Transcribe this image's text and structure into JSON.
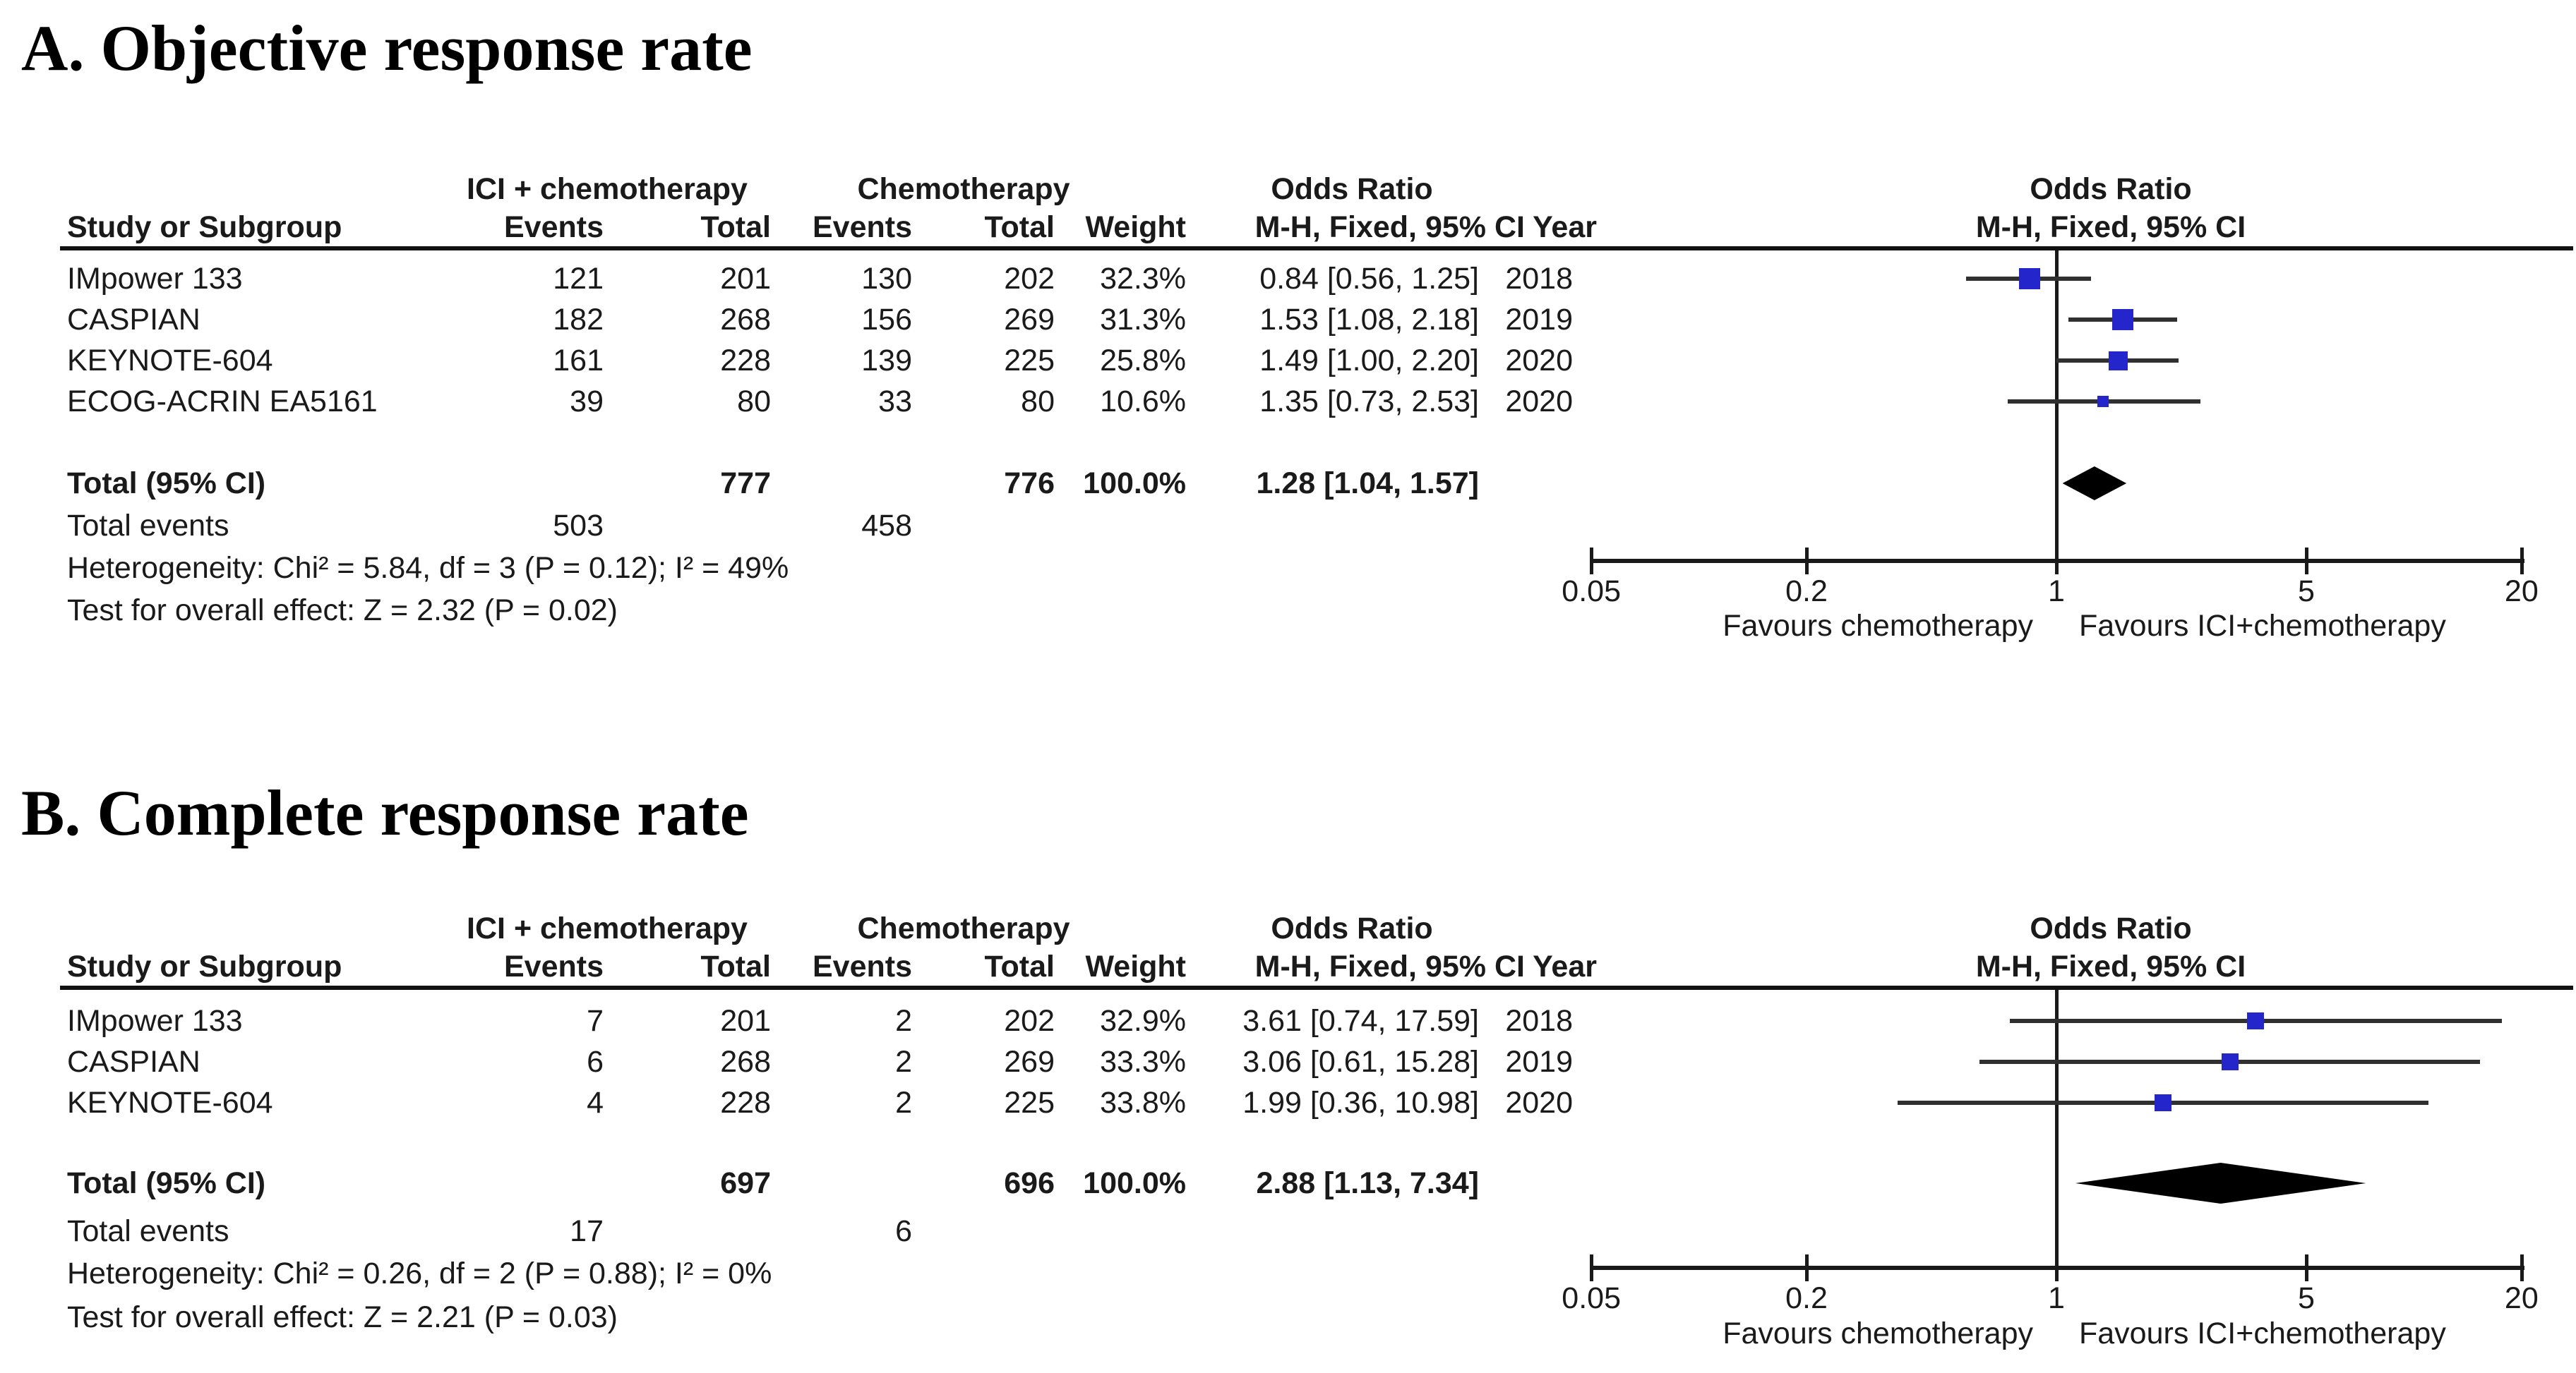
{
  "figure": {
    "text_color": "#1a1a1a",
    "square_color": "#2525cc",
    "ci_color": "#303030"
  },
  "panels": [
    {
      "title": "A. Objective response rate",
      "table": {
        "group1": "ICI + chemotherapy",
        "group2": "Chemotherapy",
        "or_col": "Odds Ratio",
        "study_hdr": "Study or Subgroup",
        "events_hdr": "Events",
        "total_hdr": "Total",
        "weight_hdr": "Weight",
        "mh_year_hdr": "M-H, Fixed, 95% CI Year",
        "rows": [
          {
            "study": "IMpower 133",
            "events1": "121",
            "total1": "201",
            "events2": "130",
            "total2": "202",
            "weight": "32.3%",
            "or_ci": "0.84 [0.56, 1.25]",
            "year": "2018"
          },
          {
            "study": "CASPIAN",
            "events1": "182",
            "total1": "268",
            "events2": "156",
            "total2": "269",
            "weight": "31.3%",
            "or_ci": "1.53 [1.08, 2.18]",
            "year": "2019"
          },
          {
            "study": "KEYNOTE-604",
            "events1": "161",
            "total1": "228",
            "events2": "139",
            "total2": "225",
            "weight": "25.8%",
            "or_ci": "1.49 [1.00, 2.20]",
            "year": "2020"
          },
          {
            "study": "ECOG-ACRIN EA5161",
            "events1": "39",
            "total1": "80",
            "events2": "33",
            "total2": "80",
            "weight": "10.6%",
            "or_ci": "1.35 [0.73, 2.53]",
            "year": "2020"
          }
        ],
        "total_row": {
          "label": "Total (95% CI)",
          "total1": "777",
          "total2": "776",
          "weight": "100.0%",
          "or_ci": "1.28 [1.04, 1.57]"
        },
        "total_events": {
          "label": "Total events",
          "events1": "503",
          "events2": "458"
        },
        "heterogeneity": "Heterogeneity: Chi² = 5.84, df = 3 (P = 0.12); I² = 49%",
        "overall_effect": "Test for overall effect: Z = 2.32 (P = 0.02)"
      },
      "plot": {
        "header1": "Odds Ratio",
        "header2": "M-H, Fixed, 95% CI",
        "tick_labels": [
          "0.05",
          "0.2",
          "1",
          "5",
          "20"
        ],
        "favours_left": "Favours chemotherapy",
        "favours_right": "Favours ICI+chemotherapy"
      }
    },
    {
      "title": "B. Complete response rate",
      "table": {
        "group1": "ICI + chemotherapy",
        "group2": "Chemotherapy",
        "or_col": "Odds Ratio",
        "study_hdr": "Study or Subgroup",
        "events_hdr": "Events",
        "total_hdr": "Total",
        "weight_hdr": "Weight",
        "mh_year_hdr": "M-H, Fixed, 95% CI Year",
        "rows": [
          {
            "study": "IMpower 133",
            "events1": "7",
            "total1": "201",
            "events2": "2",
            "total2": "202",
            "weight": "32.9%",
            "or_ci": "3.61 [0.74, 17.59]",
            "year": "2018"
          },
          {
            "study": "CASPIAN",
            "events1": "6",
            "total1": "268",
            "events2": "2",
            "total2": "269",
            "weight": "33.3%",
            "or_ci": "3.06 [0.61, 15.28]",
            "year": "2019"
          },
          {
            "study": "KEYNOTE-604",
            "events1": "4",
            "total1": "228",
            "events2": "2",
            "total2": "225",
            "weight": "33.8%",
            "or_ci": "1.99 [0.36, 10.98]",
            "year": "2020"
          }
        ],
        "total_row": {
          "label": "Total (95% CI)",
          "total1": "697",
          "total2": "696",
          "weight": "100.0%",
          "or_ci": "2.88 [1.13, 7.34]"
        },
        "total_events": {
          "label": "Total events",
          "events1": "17",
          "events2": "6"
        },
        "heterogeneity": "Heterogeneity: Chi² = 0.26, df = 2 (P = 0.88); I² = 0%",
        "overall_effect": "Test for overall effect: Z = 2.21 (P = 0.03)"
      },
      "plot": {
        "header1": "Odds Ratio",
        "header2": "M-H, Fixed, 95% CI",
        "tick_labels": [
          "0.05",
          "0.2",
          "1",
          "5",
          "20"
        ],
        "favours_left": "Favours chemotherapy",
        "favours_right": "Favours ICI+chemotherapy"
      }
    }
  ],
  "chart_data": [
    {
      "type": "scatter",
      "subtype": "forest",
      "title": "A. Objective response rate",
      "effect_measure": "Odds Ratio (M-H, Fixed, 95% CI)",
      "x_scale": "log",
      "x_ticks": [
        0.05,
        0.2,
        1,
        5,
        20
      ],
      "xlim": [
        0.05,
        20
      ],
      "null_line": 1,
      "favours": [
        "Favours chemotherapy",
        "Favours ICI+chemotherapy"
      ],
      "studies": [
        {
          "name": "IMpower 133",
          "year": 2018,
          "or": 0.84,
          "ci": [
            0.56,
            1.25
          ],
          "weight_pct": 32.3,
          "events_ici": 121,
          "total_ici": 201,
          "events_chemo": 130,
          "total_chemo": 202
        },
        {
          "name": "CASPIAN",
          "year": 2019,
          "or": 1.53,
          "ci": [
            1.08,
            2.18
          ],
          "weight_pct": 31.3,
          "events_ici": 182,
          "total_ici": 268,
          "events_chemo": 156,
          "total_chemo": 269
        },
        {
          "name": "KEYNOTE-604",
          "year": 2020,
          "or": 1.49,
          "ci": [
            1.0,
            2.2
          ],
          "weight_pct": 25.8,
          "events_ici": 161,
          "total_ici": 228,
          "events_chemo": 139,
          "total_chemo": 225
        },
        {
          "name": "ECOG-ACRIN EA5161",
          "year": 2020,
          "or": 1.35,
          "ci": [
            0.73,
            2.53
          ],
          "weight_pct": 10.6,
          "events_ici": 39,
          "total_ici": 80,
          "events_chemo": 33,
          "total_chemo": 80
        }
      ],
      "pooled": {
        "or": 1.28,
        "ci": [
          1.04,
          1.57
        ],
        "weight_pct": 100.0,
        "total_ici": 777,
        "total_chemo": 776,
        "events_ici": 503,
        "events_chemo": 458
      },
      "heterogeneity": {
        "chi2": 5.84,
        "df": 3,
        "p": 0.12,
        "i2_pct": 49
      },
      "overall_effect": {
        "z": 2.32,
        "p": 0.02
      }
    },
    {
      "type": "scatter",
      "subtype": "forest",
      "title": "B. Complete response rate",
      "effect_measure": "Odds Ratio (M-H, Fixed, 95% CI)",
      "x_scale": "log",
      "x_ticks": [
        0.05,
        0.2,
        1,
        5,
        20
      ],
      "xlim": [
        0.05,
        20
      ],
      "null_line": 1,
      "favours": [
        "Favours chemotherapy",
        "Favours ICI+chemotherapy"
      ],
      "studies": [
        {
          "name": "IMpower 133",
          "year": 2018,
          "or": 3.61,
          "ci": [
            0.74,
            17.59
          ],
          "weight_pct": 32.9,
          "events_ici": 7,
          "total_ici": 201,
          "events_chemo": 2,
          "total_chemo": 202
        },
        {
          "name": "CASPIAN",
          "year": 2019,
          "or": 3.06,
          "ci": [
            0.61,
            15.28
          ],
          "weight_pct": 33.3,
          "events_ici": 6,
          "total_ici": 268,
          "events_chemo": 2,
          "total_chemo": 269
        },
        {
          "name": "KEYNOTE-604",
          "year": 2020,
          "or": 1.99,
          "ci": [
            0.36,
            10.98
          ],
          "weight_pct": 33.8,
          "events_ici": 4,
          "total_ici": 228,
          "events_chemo": 2,
          "total_chemo": 225
        }
      ],
      "pooled": {
        "or": 2.88,
        "ci": [
          1.13,
          7.34
        ],
        "weight_pct": 100.0,
        "total_ici": 697,
        "total_chemo": 696,
        "events_ici": 17,
        "events_chemo": 6
      },
      "heterogeneity": {
        "chi2": 0.26,
        "df": 2,
        "p": 0.88,
        "i2_pct": 0
      },
      "overall_effect": {
        "z": 2.21,
        "p": 0.03
      }
    }
  ]
}
